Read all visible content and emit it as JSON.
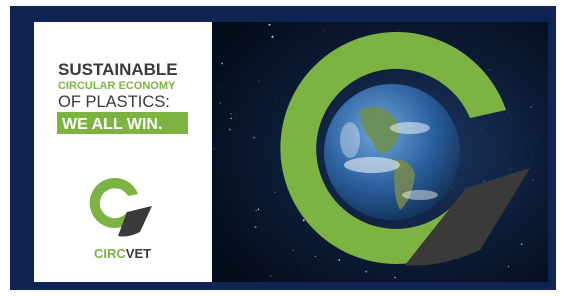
{
  "headline": {
    "line1": "SUSTAINABLE",
    "line2": "CIRCULAR ECONOMY",
    "line3": "OF PLASTICS:",
    "line4": "WE ALL WIN."
  },
  "logo": {
    "part1": "CIRC",
    "part2": "VET"
  }
}
